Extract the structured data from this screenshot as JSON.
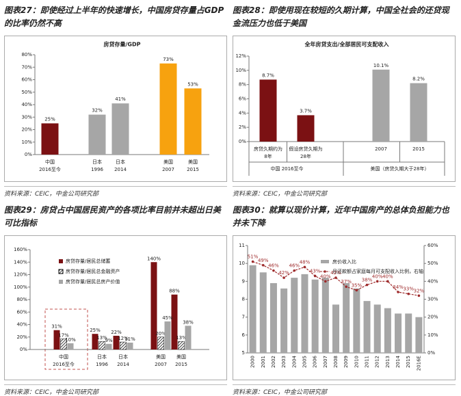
{
  "chart_data": [
    {
      "type": "bar",
      "title": "图表27：即使经过上半年的快速增长，中国房贷存量占GDP的比率仍然不高",
      "inner_title": "房贷存量/GDP",
      "categories": [
        [
          "中国",
          "2016至今"
        ],
        [
          "日本",
          "1996"
        ],
        [
          "日本",
          "2014"
        ],
        [
          "美国",
          "2007"
        ],
        [
          "美国",
          "2015"
        ]
      ],
      "values": [
        25,
        32,
        41,
        73,
        53
      ],
      "value_labels": [
        "25%",
        "32%",
        "41%",
        "73%",
        "53%"
      ],
      "colors": [
        "#7b1113",
        "#a6a6a6",
        "#a6a6a6",
        "#f7a20f",
        "#f7a20f"
      ],
      "ylim": [
        0,
        80
      ],
      "yticks": [
        {
          "value": 0,
          "label": "0%"
        },
        {
          "value": 10,
          "label": "10%"
        },
        {
          "value": 20,
          "label": "20%"
        },
        {
          "value": 30,
          "label": "30%"
        },
        {
          "value": 40,
          "label": "40%"
        },
        {
          "value": 50,
          "label": "50%"
        },
        {
          "value": 60,
          "label": "60%"
        },
        {
          "value": 70,
          "label": "70%"
        },
        {
          "value": 80,
          "label": "80%"
        }
      ],
      "source": "资料来源：CEIC，中金公司研究部"
    },
    {
      "type": "bar",
      "title": "图表28：即使用现在较短的久期计算，中国全社会的还贷现金流压力也低于美国",
      "inner_title": "全年房贷支出/全部居民可支配收入",
      "categories": [
        [
          "房贷久期约为",
          "8年"
        ],
        [
          "假设房贷久期为",
          "28年"
        ],
        [
          "2007"
        ],
        [
          "2015"
        ]
      ],
      "groups": [
        "中国 2016至今",
        "美国（房贷久期大于28年）"
      ],
      "values": [
        8.7,
        3.7,
        10.1,
        8.2
      ],
      "value_labels": [
        "8.7%",
        "3.7%",
        "10.1%",
        "8.2%"
      ],
      "colors": [
        "#7b1113",
        "#7b1113",
        "#a6a6a6",
        "#a6a6a6"
      ],
      "ylim": [
        0,
        12
      ],
      "yticks": [
        {
          "value": 0,
          "label": "0%"
        },
        {
          "value": 2,
          "label": "2%"
        },
        {
          "value": 4,
          "label": "4%"
        },
        {
          "value": 6,
          "label": "6%"
        },
        {
          "value": 8,
          "label": "8%"
        },
        {
          "value": 10,
          "label": "10%"
        },
        {
          "value": 12,
          "label": "12%"
        }
      ],
      "source": "资料来源：CEIC，中金公司研究部"
    },
    {
      "type": "grouped_bar",
      "title": "图表29：房贷占中国居民资产的各项比率目前并未超出日美可比指标",
      "categories": [
        [
          "中国",
          "2016至今"
        ],
        [
          "日本",
          "1996"
        ],
        [
          "日本",
          "2014"
        ],
        [
          "美国",
          "2007"
        ],
        [
          "美国",
          "2015"
        ]
      ],
      "series": [
        {
          "name": "房贷存量/居民总储蓄",
          "color": "#7b1113",
          "values": [
            31,
            25,
            22,
            140,
            88
          ],
          "value_labels": [
            "31%",
            "25%",
            "22%",
            "140%",
            "88%"
          ]
        },
        {
          "name": "房贷存量/居民总金融资产",
          "color": "#000000",
          "hatch": true,
          "values": [
            17,
            13,
            12,
            20,
            13
          ],
          "value_labels": [
            "17%",
            "13%",
            "12%",
            "20%",
            "13%"
          ]
        },
        {
          "name": "房贷存量/居民总房产价值",
          "color": "#a6a6a6",
          "values": [
            10,
            9,
            11,
            45,
            38
          ],
          "value_labels": [
            "10%",
            "9%",
            "11%",
            "45%",
            "38%"
          ]
        }
      ],
      "ylim": [
        0,
        160
      ],
      "yticks": [
        {
          "value": 0,
          "label": "0%"
        },
        {
          "value": 20,
          "label": "20%"
        },
        {
          "value": 40,
          "label": "40%"
        },
        {
          "value": 60,
          "label": "60%"
        },
        {
          "value": 80,
          "label": "80%"
        },
        {
          "value": 100,
          "label": "100%"
        },
        {
          "value": 120,
          "label": "120%"
        },
        {
          "value": 140,
          "label": "140%"
        },
        {
          "value": 160,
          "label": "160%"
        }
      ],
      "source": "资料来源：CEIC，中金公司研究部"
    },
    {
      "type": "bar_line",
      "title": "图表30：就算以现价计算，近年中国房产的总体负担能力也并未下降",
      "categories": [
        "2000",
        "2001",
        "2002",
        "2003",
        "2004",
        "2005",
        "2006",
        "2007",
        "2008",
        "2009",
        "2010",
        "2011",
        "2012",
        "2013",
        "2014",
        "2015",
        "2016E"
      ],
      "series": [
        {
          "name": "房价收入比",
          "color": "#a6a6a6",
          "values": [
            9.9,
            9.5,
            8.9,
            8.6,
            9.2,
            9.4,
            9.1,
            9.2,
            7.7,
            8.9,
            8.6,
            7.9,
            7.7,
            7.5,
            7.2,
            7.2,
            7.0
          ]
        },
        {
          "name": "月还款额占家庭每月可支配收入比例，右轴",
          "color": "#9e2a2b",
          "axis": "y2",
          "values": [
            51,
            49,
            46,
            42,
            46,
            48,
            43,
            40,
            42,
            37,
            35,
            38,
            40,
            40,
            34,
            33,
            32
          ],
          "value_labels": [
            "51%",
            "49%",
            "46%",
            "42%",
            "46%",
            "48%",
            "43%",
            "40%",
            "42%",
            "37%",
            "35%",
            "38%",
            "40%",
            "40%",
            "34%",
            "33%",
            "32%"
          ]
        }
      ],
      "ylim": [
        5,
        11
      ],
      "yticks": [
        5,
        6,
        7,
        8,
        9,
        10,
        11
      ],
      "y2lim": [
        0,
        60
      ],
      "y2ticks": [
        {
          "value": 0,
          "label": "0%"
        },
        {
          "value": 10,
          "label": "10%"
        },
        {
          "value": 20,
          "label": "20%"
        },
        {
          "value": 30,
          "label": "30%"
        },
        {
          "value": 40,
          "label": "40%"
        },
        {
          "value": 50,
          "label": "50%"
        },
        {
          "value": 60,
          "label": "60%"
        }
      ],
      "source": "资料来源：CEIC，中金公司研究部"
    }
  ]
}
